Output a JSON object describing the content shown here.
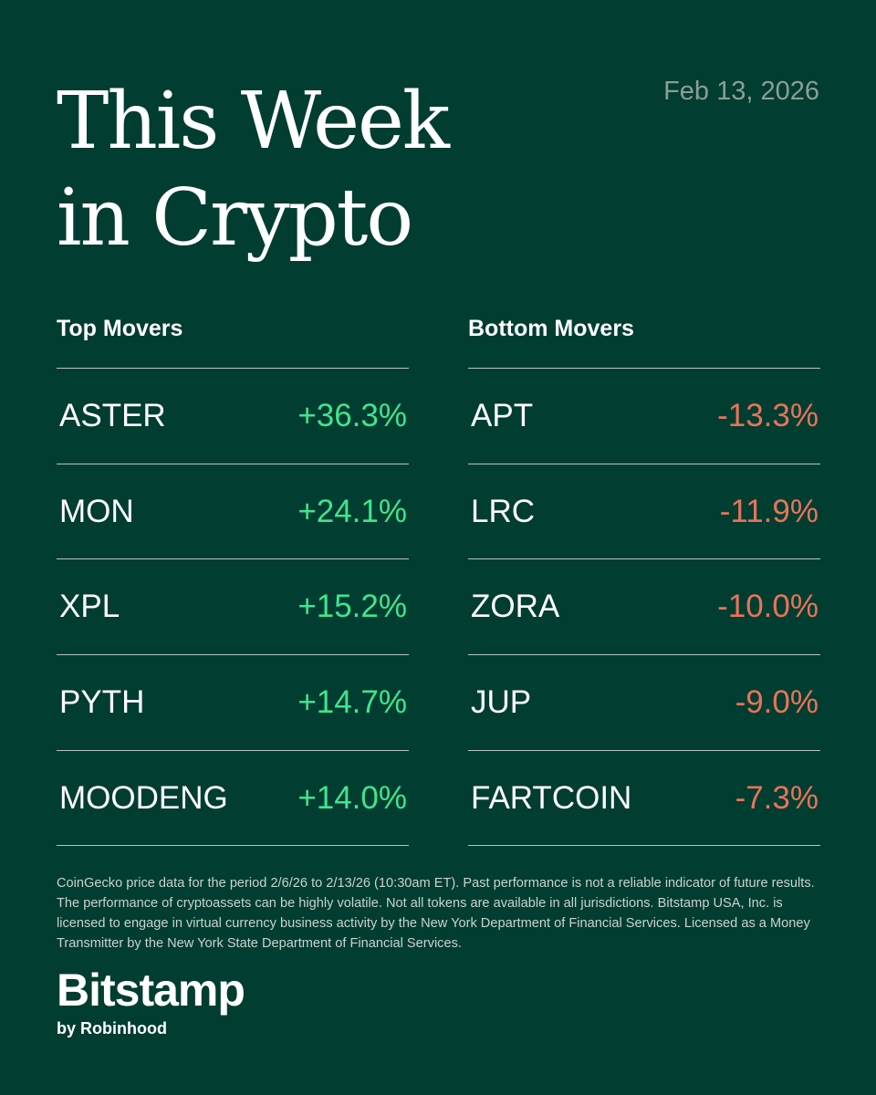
{
  "header": {
    "title_line1": "This Week",
    "title_line2": "in Crypto",
    "date": "Feb 13, 2026"
  },
  "top_movers": {
    "heading": "Top Movers",
    "rows": [
      {
        "ticker": "ASTER",
        "change": "+36.3%"
      },
      {
        "ticker": "MON",
        "change": "+24.1%"
      },
      {
        "ticker": "XPL",
        "change": "+15.2%"
      },
      {
        "ticker": "PYTH",
        "change": "+14.7%"
      },
      {
        "ticker": "MOODENG",
        "change": "+14.0%"
      }
    ]
  },
  "bottom_movers": {
    "heading": "Bottom Movers",
    "rows": [
      {
        "ticker": "APT",
        "change": "-13.3%"
      },
      {
        "ticker": "LRC",
        "change": "-11.9%"
      },
      {
        "ticker": "ZORA",
        "change": "-10.0%"
      },
      {
        "ticker": "JUP",
        "change": "-9.0%"
      },
      {
        "ticker": "FARTCOIN",
        "change": "-7.3%"
      }
    ]
  },
  "disclaimer": "CoinGecko price data for the period 2/6/26 to 2/13/26 (10:30am ET). Past performance is not a reliable indicator of future results. The performance of cryptoassets can be highly volatile. Not all tokens are available in all jurisdictions. Bitstamp USA, Inc. is licensed to engage in virtual currency business activity by the New York Department of Financial Services. Licensed as a Money Transmitter by the New York State Department of Financial Services.",
  "brand": {
    "name": "Bitstamp",
    "tagline": "by Robinhood"
  },
  "colors": {
    "background": "#013d30",
    "positive": "#3ee58f",
    "negative": "#e8745a",
    "divider": "#b8c4bf",
    "date_text": "#8a9e95"
  }
}
